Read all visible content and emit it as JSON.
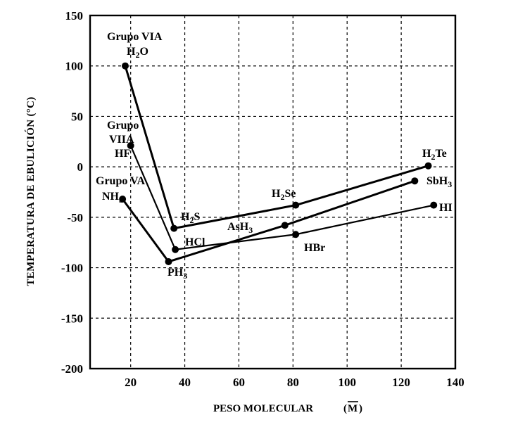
{
  "chart_data": {
    "type": "line",
    "xlabel": "PESO MOLECULAR",
    "xlabel_symbol": "M",
    "ylabel": "TEMPERATURA DE EBULICIÓN (°C)",
    "xlim": [
      5,
      140
    ],
    "ylim": [
      -200,
      150
    ],
    "x_ticks": [
      "20",
      "40",
      "60",
      "80",
      "100",
      "120",
      "140"
    ],
    "x_tick_values": [
      20,
      40,
      60,
      80,
      100,
      120,
      140
    ],
    "y_ticks": [
      "150",
      "100",
      "50",
      "0",
      "-50",
      "-100",
      "-150",
      "-200"
    ],
    "y_tick_values": [
      150,
      100,
      50,
      0,
      -50,
      -100,
      -150,
      -200
    ],
    "grid": true,
    "series": [
      {
        "name": "Grupo VIA",
        "stroke_width": 3,
        "points": [
          {
            "x": 18,
            "y": 100,
            "label": "H2O"
          },
          {
            "x": 36,
            "y": -61,
            "label": "H2S"
          },
          {
            "x": 81,
            "y": -38,
            "label": "H2Se"
          },
          {
            "x": 130,
            "y": 1,
            "label": "H2Te"
          }
        ]
      },
      {
        "name": "Grupo VIIA",
        "stroke_width": 2.2,
        "points": [
          {
            "x": 20,
            "y": 21,
            "label": "HF"
          },
          {
            "x": 36.5,
            "y": -82,
            "label": "HCl"
          },
          {
            "x": 81,
            "y": -67,
            "label": "HBr"
          },
          {
            "x": 132,
            "y": -38,
            "label": "HI"
          }
        ]
      },
      {
        "name": "Grupo VA",
        "stroke_width": 3,
        "points": [
          {
            "x": 17,
            "y": -32,
            "label": "NH3"
          },
          {
            "x": 34,
            "y": -94,
            "label": "PH3"
          },
          {
            "x": 77,
            "y": -58,
            "label": "AsH3"
          },
          {
            "x": 125,
            "y": -14,
            "label": "SbH3"
          }
        ]
      }
    ]
  },
  "annotations": {
    "via_group_label": "Grupo VIA",
    "viia_group_line1": "Grupo",
    "viia_group_line2": "VIIA",
    "va_group_label": "Grupo VA",
    "h2o": {
      "base": "H",
      "sub": "2",
      "tail": "O"
    },
    "hf": "HF",
    "nh3": {
      "base": "NH",
      "sub": "3"
    },
    "h2s": {
      "base": "H",
      "sub": "2",
      "tail": "S"
    },
    "hcl": "HCl",
    "ph3": {
      "base": "PH",
      "sub": "3"
    },
    "ash3": {
      "base": "AsH",
      "sub": "3"
    },
    "h2se": {
      "base": "H",
      "sub": "2",
      "tail": "Se"
    },
    "hbr": "HBr",
    "h2te": {
      "base": "H",
      "sub": "2",
      "tail": "Te"
    },
    "sbh3": {
      "base": "SbH",
      "sub": "3"
    },
    "hi": "HI"
  }
}
